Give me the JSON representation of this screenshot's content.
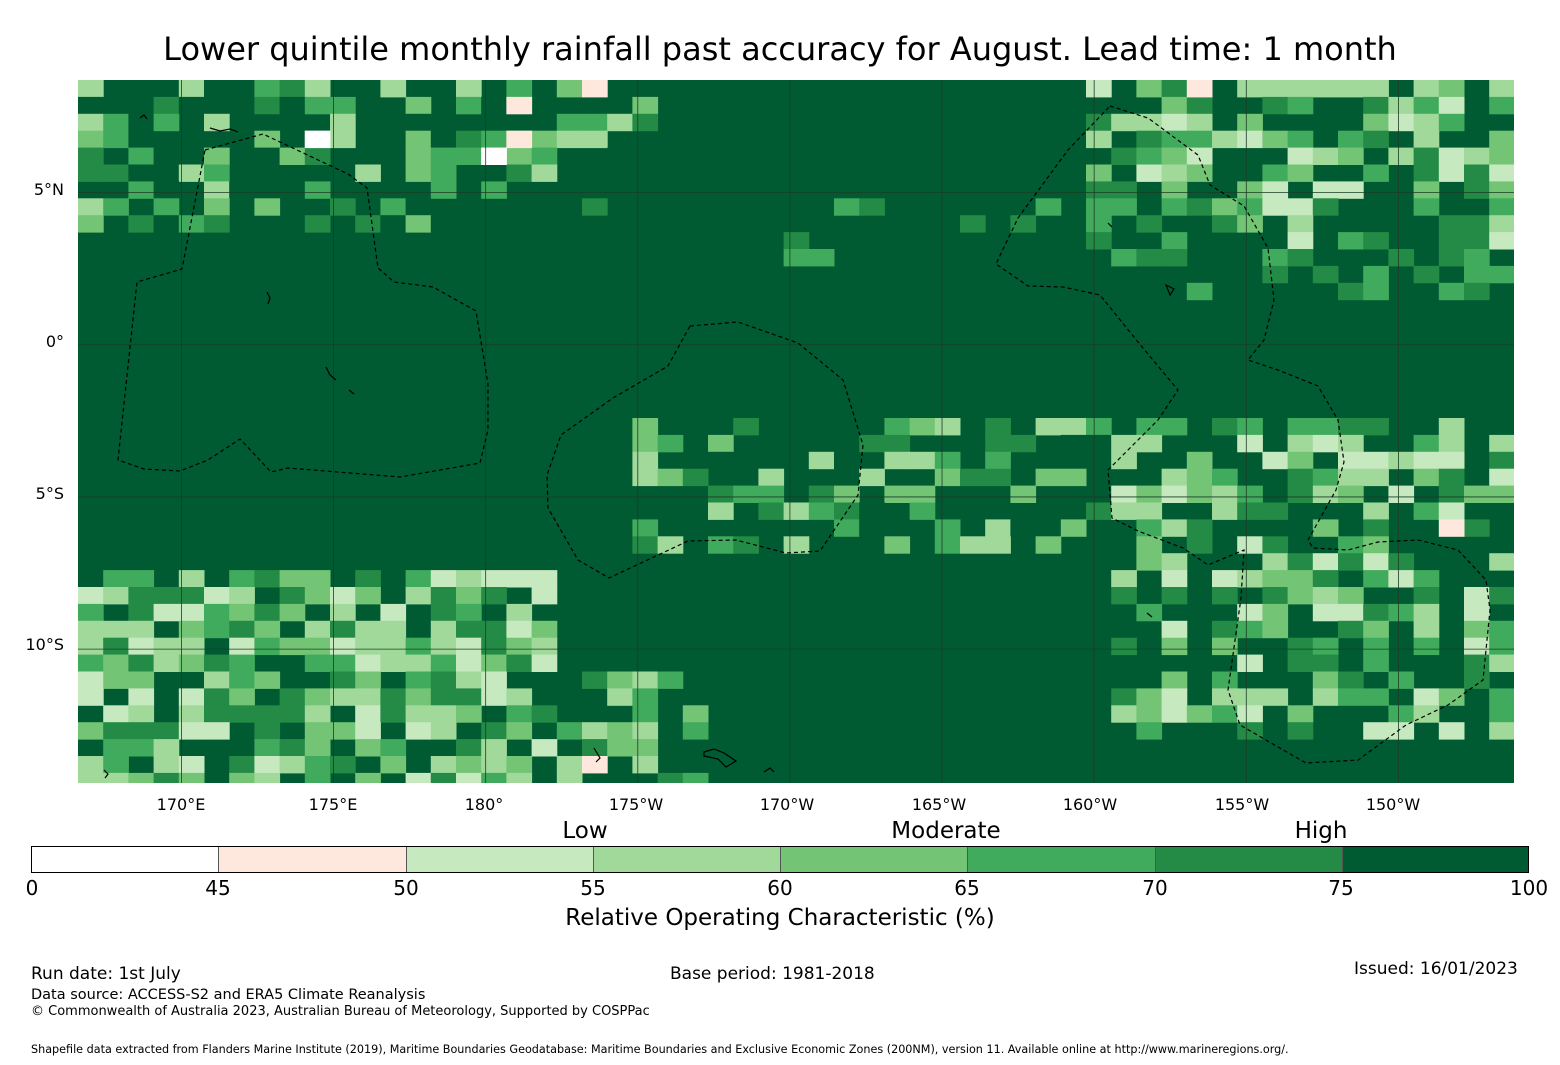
{
  "title": "Lower quintile monthly rainfall past accuracy for August. Lead time: 1 month",
  "map": {
    "lat_labels": [
      "5°N",
      "0°",
      "5°S",
      "10°S"
    ],
    "lon_labels": [
      "170°E",
      "175°E",
      "180°",
      "175°W",
      "170°W",
      "165°W",
      "160°W",
      "155°W",
      "150°W"
    ],
    "lat_values": [
      5,
      0,
      -5,
      -10
    ],
    "lon_values": [
      170,
      175,
      180,
      185,
      190,
      195,
      200,
      205,
      210
    ],
    "extent": {
      "lon_min": 166.6,
      "lon_max": 213.8,
      "lat_min": -14.4,
      "lat_max": 8.7
    },
    "background_color": "#005a32",
    "boundary_style": "dashed"
  },
  "colorbar": {
    "categories": {
      "low": "Low",
      "moderate": "Moderate",
      "high": "High"
    },
    "ticks": [
      "0",
      "45",
      "50",
      "55",
      "60",
      "65",
      "70",
      "75",
      "100"
    ],
    "bins": [
      {
        "from": 0,
        "to": 45,
        "color": "#ffffff"
      },
      {
        "from": 45,
        "to": 50,
        "color": "#fee8de"
      },
      {
        "from": 50,
        "to": 55,
        "color": "#c7e9c0"
      },
      {
        "from": 55,
        "to": 60,
        "color": "#a1d99b"
      },
      {
        "from": 60,
        "to": 65,
        "color": "#74c476"
      },
      {
        "from": 65,
        "to": 70,
        "color": "#41ab5d"
      },
      {
        "from": 70,
        "to": 75,
        "color": "#238b45"
      },
      {
        "from": 75,
        "to": 100,
        "color": "#005a32"
      }
    ],
    "label": "Relative Operating Characteristic (%)"
  },
  "footer": {
    "run_date": "Run date: 1st July",
    "base_period": "Base period: 1981-2018",
    "issued": "Issued: 16/01/2023",
    "data_source": "Data source: ACCESS-S2 and ERA5 Climate Reanalysis",
    "copyright": "© Commonwealth of Australia 2023, Australian Bureau of Meteorology, Supported by COSPPac",
    "shapefile_credit": "Shapefile data extracted from Flanders Marine Institute (2019), Maritime Boundaries Geodatabase: Maritime Boundaries and Exclusive Economic Zones (200NM), version 11. Available online at http://www.marineregions.org/."
  }
}
